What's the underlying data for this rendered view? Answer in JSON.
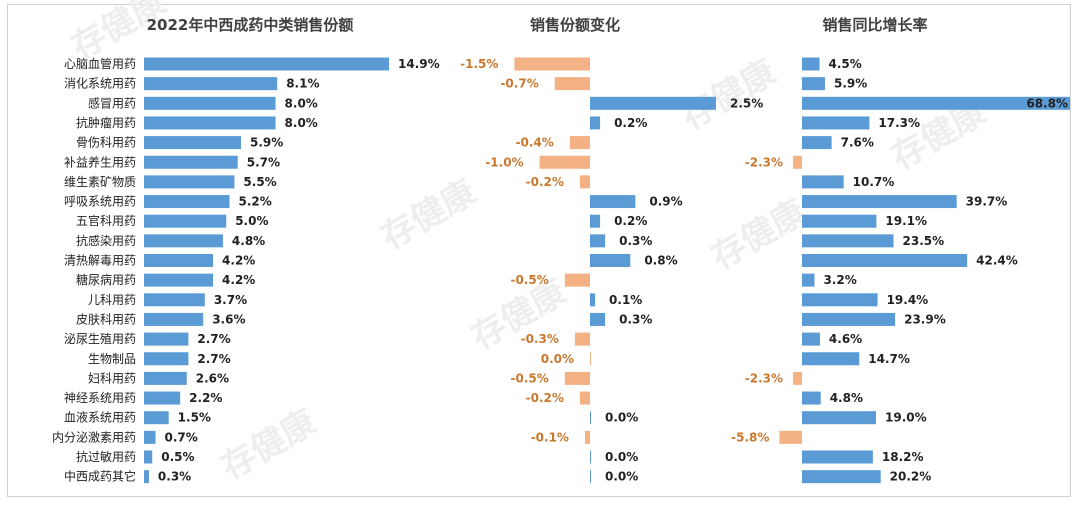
{
  "colors": {
    "bar": "#5b9bd5",
    "bar_negative": "#f4b183",
    "label_negative": "#c9782e",
    "text": "#222222",
    "title": "#404040"
  },
  "watermarks": [
    "存健康",
    "存健康",
    "存健康",
    "存健康",
    "存健康",
    "存健康",
    "存健康"
  ],
  "chart_data": [
    {
      "type": "bar",
      "orientation": "horizontal",
      "title": "2022年中西成药中类销售份额",
      "categories": [
        "心脑血管用药",
        "消化系统用药",
        "感冒用药",
        "抗肿瘤用药",
        "骨伤科用药",
        "补益养生用药",
        "维生素矿物质",
        "呼吸系统用药",
        "五官科用药",
        "抗感染用药",
        "清热解毒用药",
        "糖尿病用药",
        "儿科用药",
        "皮肤科用药",
        "泌尿生殖用药",
        "生物制品",
        "妇科用药",
        "神经系统用药",
        "血液系统用药",
        "内分泌激素用药",
        "抗过敏用药",
        "中西成药其它"
      ],
      "values": [
        14.9,
        8.1,
        8.0,
        8.0,
        5.9,
        5.7,
        5.5,
        5.2,
        5.0,
        4.8,
        4.2,
        4.2,
        3.7,
        3.6,
        2.7,
        2.7,
        2.6,
        2.2,
        1.5,
        0.7,
        0.5,
        0.3
      ],
      "labels": [
        "14.9%",
        "8.1%",
        "8.0%",
        "8.0%",
        "5.9%",
        "5.7%",
        "5.5%",
        "5.2%",
        "5.0%",
        "4.8%",
        "4.2%",
        "4.2%",
        "3.7%",
        "3.6%",
        "2.7%",
        "2.7%",
        "2.6%",
        "2.2%",
        "1.5%",
        "0.7%",
        "0.5%",
        "0.3%"
      ]
    },
    {
      "type": "bar",
      "orientation": "horizontal",
      "title": "销售份额变化",
      "values": [
        -1.5,
        -0.7,
        2.5,
        0.2,
        -0.4,
        -1.0,
        -0.2,
        0.9,
        0.2,
        0.3,
        0.8,
        -0.5,
        0.1,
        0.3,
        -0.3,
        0.0,
        -0.5,
        -0.2,
        0.0,
        -0.1,
        0.0,
        0.0
      ],
      "labels": [
        "-1.5%",
        "-0.7%",
        "2.5%",
        "0.2%",
        "-0.4%",
        "-1.0%",
        "-0.2%",
        "0.9%",
        "0.2%",
        "0.3%",
        "0.8%",
        "-0.5%",
        "0.1%",
        "0.3%",
        "-0.3%",
        "0.0%",
        "-0.5%",
        "-0.2%",
        "0.0%",
        "-0.1%",
        "0.0%",
        "0.0%"
      ]
    },
    {
      "type": "bar",
      "orientation": "horizontal",
      "title": "销售同比增长率",
      "values": [
        4.5,
        5.9,
        68.8,
        17.3,
        7.6,
        -2.3,
        10.7,
        39.7,
        19.1,
        23.5,
        42.4,
        3.2,
        19.4,
        23.9,
        4.6,
        14.7,
        -2.3,
        4.8,
        19.0,
        -5.8,
        18.2,
        20.2
      ],
      "labels": [
        "4.5%",
        "5.9%",
        "68.8%",
        "17.3%",
        "7.6%",
        "-2.3%",
        "10.7%",
        "39.7%",
        "19.1%",
        "23.5%",
        "42.4%",
        "3.2%",
        "19.4%",
        "23.9%",
        "4.6%",
        "14.7%",
        "-2.3%",
        "4.8%",
        "19.0%",
        "-5.8%",
        "18.2%",
        "20.2%"
      ]
    }
  ]
}
